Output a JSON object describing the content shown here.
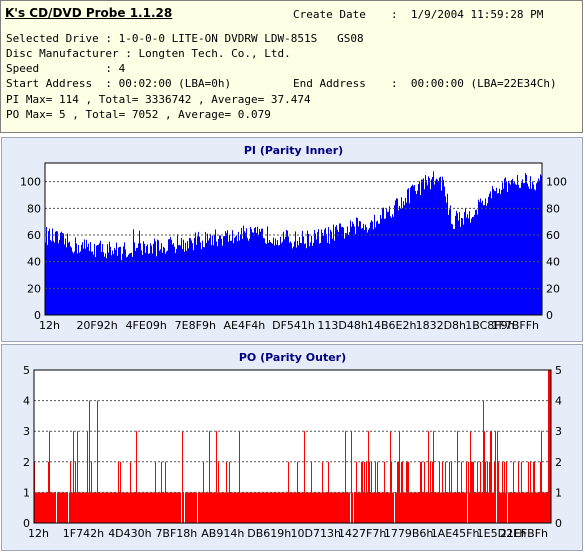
{
  "header": {
    "app_title": "K's CD/DVD Probe 1.1.28",
    "create_date_label": "Create Date",
    "create_date_value": ":  1/9/2004 11:59:28 PM",
    "selected_drive": "Selected Drive : 1-0-0-0 LITE-ON DVDRW LDW-851S   GS08",
    "disc_manufacturer": "Disc Manufacturer : Longten Tech. Co., Ltd.",
    "speed": "Speed          : 4",
    "start_address": "Start Address  : 00:02:00 (LBA=0h)",
    "end_address_label": "End Address",
    "end_address_value": ":  00:00:00 (LBA=22E34Ch)",
    "pi_stats": "PI Max= 114 , Total= 3336742 , Average= 37.474",
    "po_stats": "PO Max= 5 , Total= 7052 , Average= 0.079"
  },
  "colors": {
    "pi_bar": "#0000ff",
    "po_bar": "#ff0000",
    "plot_bg": "#ffffff",
    "panel_bg": "#e6edf8",
    "title": "#000080",
    "info_bg": "#ffffe6"
  },
  "chart_data": [
    {
      "type": "bar",
      "title": "PI (Parity Inner)",
      "ylim": [
        0,
        114
      ],
      "yticks": [
        0,
        20,
        40,
        60,
        80,
        100
      ],
      "grid": true,
      "xticks": [
        "12h",
        "20F92h",
        "4FE09h",
        "7E8F9h",
        "AE4F4h",
        "DF541h",
        "113D48h",
        "14B6E2h",
        "1832D8h",
        "1BC8F9h",
        "1F7BFFh"
      ],
      "profile": {
        "x": [
          0,
          0.06,
          0.15,
          0.25,
          0.35,
          0.45,
          0.5,
          0.55,
          0.6,
          0.65,
          0.7,
          0.75,
          0.78,
          0.8,
          0.82,
          0.85,
          0.9,
          0.95,
          1.0
        ],
        "y": [
          60,
          52,
          48,
          52,
          58,
          60,
          56,
          58,
          63,
          68,
          80,
          95,
          102,
          100,
          70,
          74,
          90,
          102,
          100
        ]
      },
      "max": 114,
      "average": 37.474
    },
    {
      "type": "bar",
      "title": "PO (Parity Outer)",
      "ylim": [
        0,
        5
      ],
      "yticks": [
        0,
        1,
        2,
        3,
        4,
        5
      ],
      "grid": true,
      "xticks": [
        "12h",
        "1F742h",
        "4D430h",
        "7BF18h",
        "AB914h",
        "DB619h",
        "10D713h",
        "1427F7h",
        "1779B6h",
        "1AE45Fh",
        "1E5D2Fh",
        "21EFBFh"
      ],
      "baseline_level": 1,
      "max": 5,
      "average": 0.079
    }
  ]
}
